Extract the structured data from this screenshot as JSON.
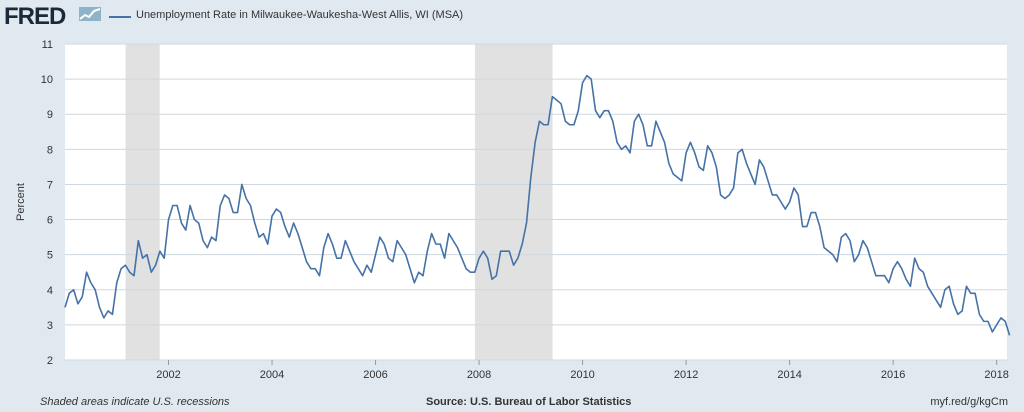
{
  "header": {
    "logo_text": "FRED",
    "series_title": "Unemployment Rate in Milwaukee-Waukesha-West Allis, WI (MSA)"
  },
  "footer": {
    "note": "Shaded areas indicate U.S. recessions",
    "source": "Source: U.S. Bureau of Labor Statistics",
    "link": "myf.red/g/kgCm"
  },
  "colors": {
    "line": "#4572a7",
    "recession": "#e1e1e1",
    "plot_bg": "#ffffff",
    "page_bg": "#e1e9f0",
    "grid": "#cfd8e0"
  },
  "chart_data": {
    "type": "line",
    "title": "Unemployment Rate in Milwaukee-Waukesha-West Allis, WI (MSA)",
    "ylabel": "Percent",
    "xlabel": "",
    "ylim": [
      2,
      11
    ],
    "xlim": [
      2000.0,
      2018.2
    ],
    "yticks": [
      2,
      3,
      4,
      5,
      6,
      7,
      8,
      9,
      10,
      11
    ],
    "xticks": [
      2002,
      2004,
      2006,
      2008,
      2010,
      2012,
      2014,
      2016,
      2018
    ],
    "grid": "horizontal",
    "recessions": [
      [
        2001.17,
        2001.83
      ],
      [
        2007.92,
        2009.42
      ]
    ],
    "series": [
      {
        "name": "Unemployment Rate in Milwaukee-Waukesha-West Allis, WI (MSA)",
        "start": "2000-01",
        "frequency": "monthly",
        "values": [
          3.5,
          3.9,
          4.0,
          3.6,
          3.8,
          4.5,
          4.2,
          4.0,
          3.5,
          3.2,
          3.4,
          3.3,
          4.2,
          4.6,
          4.7,
          4.5,
          4.4,
          5.4,
          4.9,
          5.0,
          4.5,
          4.7,
          5.1,
          4.9,
          6.0,
          6.4,
          6.4,
          5.9,
          5.7,
          6.4,
          6.0,
          5.9,
          5.4,
          5.2,
          5.5,
          5.4,
          6.4,
          6.7,
          6.6,
          6.2,
          6.2,
          7.0,
          6.6,
          6.4,
          5.9,
          5.5,
          5.6,
          5.3,
          6.1,
          6.3,
          6.2,
          5.8,
          5.5,
          5.9,
          5.6,
          5.2,
          4.8,
          4.6,
          4.6,
          4.4,
          5.2,
          5.6,
          5.3,
          4.9,
          4.9,
          5.4,
          5.1,
          4.8,
          4.6,
          4.4,
          4.7,
          4.5,
          5.0,
          5.5,
          5.3,
          4.9,
          4.8,
          5.4,
          5.2,
          5.0,
          4.6,
          4.2,
          4.5,
          4.4,
          5.1,
          5.6,
          5.3,
          5.3,
          4.9,
          5.6,
          5.4,
          5.2,
          4.9,
          4.6,
          4.5,
          4.5,
          4.9,
          5.1,
          4.9,
          4.3,
          4.4,
          5.1,
          5.1,
          5.1,
          4.7,
          4.9,
          5.3,
          5.9,
          7.2,
          8.2,
          8.8,
          8.7,
          8.7,
          9.5,
          9.4,
          9.3,
          8.8,
          8.7,
          8.7,
          9.1,
          9.9,
          10.1,
          10.0,
          9.1,
          8.9,
          9.1,
          9.1,
          8.8,
          8.2,
          8.0,
          8.1,
          7.9,
          8.8,
          9.0,
          8.7,
          8.1,
          8.1,
          8.8,
          8.5,
          8.2,
          7.6,
          7.3,
          7.2,
          7.1,
          7.9,
          8.2,
          7.9,
          7.5,
          7.4,
          8.1,
          7.9,
          7.5,
          6.7,
          6.6,
          6.7,
          6.9,
          7.9,
          8.0,
          7.6,
          7.3,
          7.0,
          7.7,
          7.5,
          7.1,
          6.7,
          6.7,
          6.5,
          6.3,
          6.5,
          6.9,
          6.7,
          5.8,
          5.8,
          6.2,
          6.2,
          5.8,
          5.2,
          5.1,
          5.0,
          4.8,
          5.5,
          5.6,
          5.4,
          4.8,
          5.0,
          5.4,
          5.2,
          4.8,
          4.4,
          4.4,
          4.4,
          4.2,
          4.6,
          4.8,
          4.6,
          4.3,
          4.1,
          4.9,
          4.6,
          4.5,
          4.1,
          3.9,
          3.7,
          3.5,
          4.0,
          4.1,
          3.6,
          3.3,
          3.4,
          4.1,
          3.9,
          3.9,
          3.3,
          3.1,
          3.1,
          2.8,
          3.0,
          3.2,
          3.1,
          2.7
        ]
      }
    ]
  }
}
